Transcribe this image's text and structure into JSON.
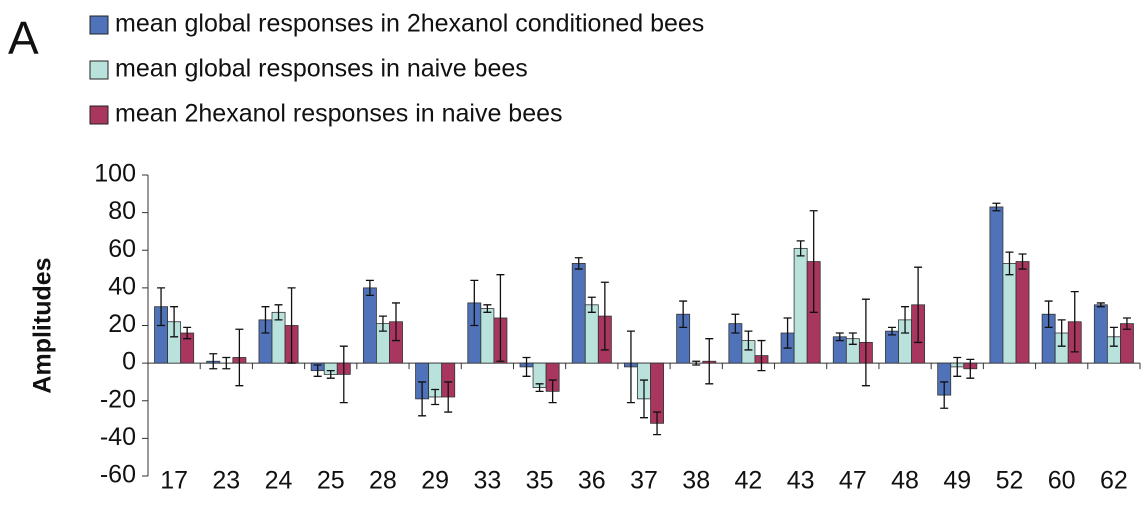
{
  "chart_data": {
    "type": "bar",
    "panel_label": "A",
    "y_label": "Amplitudes",
    "categories": [
      "17",
      "23",
      "24",
      "25",
      "28",
      "29",
      "33",
      "35",
      "36",
      "37",
      "38",
      "42",
      "43",
      "47",
      "48",
      "49",
      "52",
      "60",
      "62"
    ],
    "series": [
      {
        "name": "mean global responses in 2hexanol conditioned bees",
        "color": "#4f72b8",
        "values": [
          30,
          1,
          23,
          -4,
          40,
          -19,
          32,
          -2,
          53,
          -2,
          26,
          21,
          16,
          14,
          17,
          -17,
          83,
          26,
          31
        ],
        "errors": [
          10,
          4,
          7,
          3,
          4,
          9,
          12,
          5,
          3,
          19,
          7,
          5,
          8,
          2,
          2,
          7,
          2,
          7,
          1
        ]
      },
      {
        "name": "mean global responses in naive bees",
        "color": "#b9e2dc",
        "values": [
          22,
          0,
          27,
          -6,
          21,
          -18,
          29,
          -13,
          31,
          -19,
          0,
          12,
          61,
          13,
          23,
          -2,
          53,
          16,
          14
        ],
        "errors": [
          8,
          3,
          4,
          2,
          4,
          4,
          2,
          2,
          4,
          10,
          1,
          5,
          4,
          3,
          7,
          5,
          6,
          7,
          5
        ]
      },
      {
        "name": "mean 2hexanol responses in naive bees",
        "color": "#a8365f",
        "values": [
          16,
          3,
          20,
          -6,
          22,
          -18,
          24,
          -15,
          25,
          -32,
          1,
          4,
          54,
          11,
          31,
          -3,
          54,
          22,
          21
        ],
        "errors": [
          3,
          15,
          20,
          15,
          10,
          8,
          23,
          6,
          18,
          6,
          12,
          8,
          27,
          23,
          20,
          5,
          4,
          16,
          3
        ]
      }
    ],
    "ylim": [
      -60,
      100
    ],
    "yticks": [
      -60,
      -40,
      -20,
      0,
      20,
      40,
      60,
      80,
      100
    ]
  }
}
